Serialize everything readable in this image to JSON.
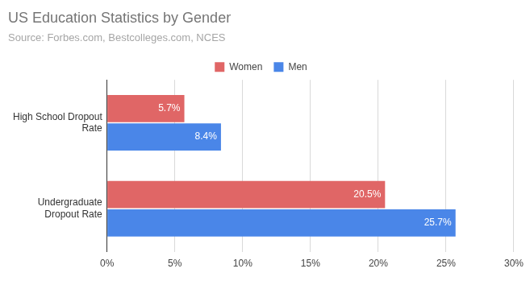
{
  "chart_data": {
    "type": "bar",
    "orientation": "horizontal",
    "title": "US Education Statistics by Gender",
    "subtitle": "Source: Forbes.com, Bestcolleges.com, NCES",
    "categories": [
      "High School Dropout Rate",
      "Undergraduate Dropout Rate"
    ],
    "series": [
      {
        "name": "Women",
        "color": "#e06666",
        "values": [
          5.7,
          20.5
        ],
        "value_labels": [
          "5.7%",
          "20.5%"
        ]
      },
      {
        "name": "Men",
        "color": "#4a86e8",
        "values": [
          8.4,
          25.7
        ],
        "value_labels": [
          "8.4%",
          "25.7%"
        ]
      }
    ],
    "xlim": [
      0,
      30
    ],
    "xticks": [
      {
        "value": 0,
        "label": "0%"
      },
      {
        "value": 5,
        "label": "5%"
      },
      {
        "value": 10,
        "label": "10%"
      },
      {
        "value": 15,
        "label": "15%"
      },
      {
        "value": 20,
        "label": "20%"
      },
      {
        "value": 25,
        "label": "25%"
      },
      {
        "value": 30,
        "label": "30%"
      }
    ],
    "grid": true,
    "legend": "top",
    "data_labels": true
  }
}
